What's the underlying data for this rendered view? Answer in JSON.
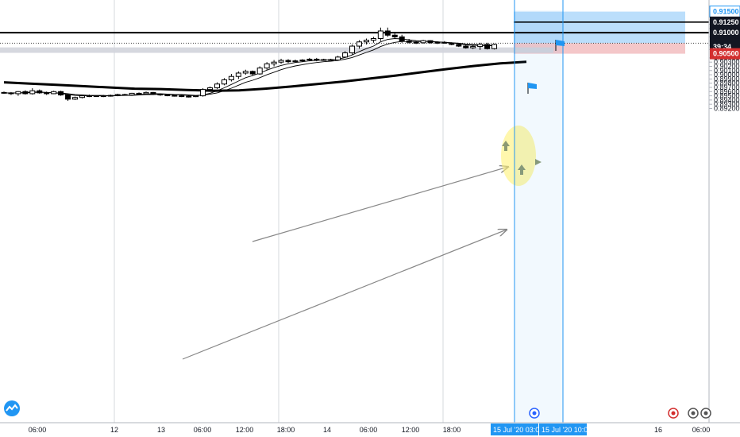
{
  "chart_data": {
    "type": "candlestick",
    "title": "",
    "colors": {
      "up": "#ffffff",
      "down": "#000000",
      "target_zone": "#bbdefb",
      "stop_zone": "#f4c7c9",
      "support_band": "#d1d4dc",
      "highlight": "#fff176",
      "accent": "#2196f3",
      "loss_tag": "#d32f2f",
      "flag": "#2196f3"
    },
    "y_axis": {
      "min": 0.8915,
      "max": 0.9153,
      "ticks": [
        "0.89200",
        "0.89300",
        "0.89400",
        "0.89500",
        "0.89600",
        "0.89700",
        "0.89800",
        "0.89900",
        "0.90000",
        "0.90100",
        "0.90200",
        "0.90300",
        "0.90400",
        "0.90600",
        "0.90700",
        "0.90800",
        "0.90900",
        "0.91100",
        "0.91200",
        "0.91300",
        "0.91400"
      ]
    },
    "x_axis": {
      "ticks": [
        "06:00",
        "12",
        "13",
        "06:00",
        "12:00",
        "18:00",
        "14",
        "06:00",
        "12:00",
        "18:00",
        "03:00",
        "16",
        "06:00"
      ],
      "cursor_labels": [
        "15 Jul '20",
        "15 Jul '20"
      ],
      "cursor_times": [
        "03:00",
        "10:00"
      ]
    },
    "price_tags": [
      {
        "label": "0.91500",
        "value": 0.915,
        "style": "accent"
      },
      {
        "label": "0.91250",
        "value": 0.9125,
        "style": "dark"
      },
      {
        "label": "0.91000",
        "value": 0.91,
        "style": "dark"
      },
      {
        "label": "0.90750",
        "value": 0.9075,
        "style": "dark"
      },
      {
        "label": "0.90723",
        "value": 0.90723,
        "style": "dark"
      },
      {
        "label": "39:34",
        "value": 0.9066,
        "style": "dark"
      },
      {
        "label": "0.90500",
        "value": 0.905,
        "style": "loss"
      }
    ],
    "horizontal_lines": [
      0.9125,
      0.91
    ],
    "dotted_line": 0.9075,
    "support_band": [
      0.9052,
      0.9065
    ],
    "target_zone": [
      0.9075,
      0.915
    ],
    "stop_zone": [
      0.905,
      0.9075
    ],
    "candles": [
      [
        0.8958,
        0.896,
        0.8955,
        0.8957
      ],
      [
        0.8957,
        0.8959,
        0.8952,
        0.8955
      ],
      [
        0.8955,
        0.8961,
        0.895,
        0.896
      ],
      [
        0.896,
        0.8963,
        0.8953,
        0.8955
      ],
      [
        0.8955,
        0.8968,
        0.8953,
        0.8962
      ],
      [
        0.8962,
        0.8965,
        0.8955,
        0.8957
      ],
      [
        0.8957,
        0.896,
        0.8952,
        0.8955
      ],
      [
        0.8955,
        0.8962,
        0.8954,
        0.896
      ],
      [
        0.896,
        0.8962,
        0.895,
        0.8952
      ],
      [
        0.8952,
        0.8955,
        0.8938,
        0.8942
      ],
      [
        0.8942,
        0.8948,
        0.894,
        0.8946
      ],
      [
        0.8946,
        0.8952,
        0.8944,
        0.895
      ],
      [
        0.895,
        0.8953,
        0.8947,
        0.895
      ],
      [
        0.895,
        0.8951,
        0.8948,
        0.8949
      ],
      [
        0.8949,
        0.8952,
        0.8947,
        0.895
      ],
      [
        0.895,
        0.8953,
        0.8948,
        0.8951
      ],
      [
        0.8951,
        0.8955,
        0.8949,
        0.8953
      ],
      [
        0.8953,
        0.8955,
        0.895,
        0.8952
      ],
      [
        0.8952,
        0.8957,
        0.895,
        0.8956
      ],
      [
        0.8956,
        0.8958,
        0.8953,
        0.8955
      ],
      [
        0.8955,
        0.896,
        0.8954,
        0.8958
      ],
      [
        0.8958,
        0.8959,
        0.8952,
        0.8954
      ],
      [
        0.8954,
        0.8955,
        0.895,
        0.8952
      ],
      [
        0.8952,
        0.8954,
        0.8949,
        0.8951
      ],
      [
        0.8951,
        0.8953,
        0.8948,
        0.895
      ],
      [
        0.895,
        0.8952,
        0.8947,
        0.8949
      ],
      [
        0.8949,
        0.8951,
        0.8946,
        0.8948
      ],
      [
        0.8948,
        0.8951,
        0.8947,
        0.895
      ],
      [
        0.895,
        0.8968,
        0.8948,
        0.8965
      ],
      [
        0.8965,
        0.8972,
        0.8962,
        0.8969
      ],
      [
        0.8969,
        0.8982,
        0.8966,
        0.8978
      ],
      [
        0.8978,
        0.8992,
        0.8975,
        0.8988
      ],
      [
        0.8988,
        0.9002,
        0.8984,
        0.8996
      ],
      [
        0.8996,
        0.9008,
        0.899,
        0.9004
      ],
      [
        0.9004,
        0.9012,
        0.9,
        0.9008
      ],
      [
        0.9008,
        0.901,
        0.8998,
        0.9002
      ],
      [
        0.9002,
        0.902,
        0.9,
        0.9016
      ],
      [
        0.9016,
        0.903,
        0.9012,
        0.9026
      ],
      [
        0.9026,
        0.9035,
        0.902,
        0.903
      ],
      [
        0.903,
        0.9038,
        0.9026,
        0.9034
      ],
      [
        0.9034,
        0.9037,
        0.9028,
        0.9031
      ],
      [
        0.9031,
        0.9036,
        0.9029,
        0.9033
      ],
      [
        0.9033,
        0.9037,
        0.903,
        0.9035
      ],
      [
        0.9035,
        0.904,
        0.9032,
        0.9037
      ],
      [
        0.9037,
        0.904,
        0.9032,
        0.9035
      ],
      [
        0.9035,
        0.9038,
        0.9033,
        0.9036
      ],
      [
        0.9036,
        0.9038,
        0.9034,
        0.9035
      ],
      [
        0.9035,
        0.9045,
        0.9033,
        0.9042
      ],
      [
        0.9042,
        0.9056,
        0.904,
        0.9052
      ],
      [
        0.9052,
        0.9072,
        0.9048,
        0.9068
      ],
      [
        0.9068,
        0.9082,
        0.9062,
        0.9078
      ],
      [
        0.9078,
        0.9086,
        0.9072,
        0.9082
      ],
      [
        0.9082,
        0.909,
        0.9076,
        0.9086
      ],
      [
        0.9086,
        0.9112,
        0.908,
        0.9104
      ],
      [
        0.9104,
        0.9112,
        0.909,
        0.9094
      ],
      [
        0.9094,
        0.9102,
        0.9085,
        0.909
      ],
      [
        0.909,
        0.9095,
        0.9076,
        0.908
      ],
      [
        0.908,
        0.9085,
        0.9074,
        0.9077
      ],
      [
        0.9077,
        0.908,
        0.9073,
        0.9076
      ],
      [
        0.9076,
        0.9083,
        0.9074,
        0.9081
      ],
      [
        0.9081,
        0.9082,
        0.9074,
        0.9076
      ],
      [
        0.9076,
        0.9079,
        0.9073,
        0.9077
      ],
      [
        0.9077,
        0.908,
        0.9074,
        0.9075
      ],
      [
        0.9075,
        0.9077,
        0.907,
        0.9072
      ],
      [
        0.9072,
        0.9074,
        0.9066,
        0.9068
      ],
      [
        0.9068,
        0.907,
        0.9062,
        0.9064
      ],
      [
        0.9064,
        0.907,
        0.9061,
        0.9067
      ],
      [
        0.9067,
        0.9076,
        0.9059,
        0.9072
      ],
      [
        0.9072,
        0.9076,
        0.906,
        0.9062
      ],
      [
        0.9062,
        0.9074,
        0.906,
        0.9072
      ]
    ],
    "moving_averages": [
      {
        "values": [
          0.8957,
          0.8957,
          0.8957,
          0.8958,
          0.8959,
          0.8959,
          0.8958,
          0.8957,
          0.8956,
          0.8953,
          0.8951,
          0.895,
          0.895,
          0.895,
          0.895,
          0.895,
          0.8951,
          0.8951,
          0.8952,
          0.8953,
          0.8954,
          0.8955,
          0.8955,
          0.8954,
          0.8953,
          0.8952,
          0.8951,
          0.895,
          0.8952,
          0.8956,
          0.8962,
          0.8969,
          0.8977,
          0.8985,
          0.8993,
          0.8998,
          0.9004,
          0.9011,
          0.9017,
          0.9022,
          0.9026,
          0.9029,
          0.9031,
          0.9033,
          0.9034,
          0.9035,
          0.9035,
          0.9037,
          0.9041,
          0.9047,
          0.9055,
          0.9062,
          0.9068,
          0.9078,
          0.9084,
          0.9086,
          0.9085,
          0.9083,
          0.9081,
          0.908,
          0.9079,
          0.9078,
          0.9077,
          0.9076,
          0.9074,
          0.9071,
          0.907,
          0.907,
          0.9069,
          0.9069
        ]
      },
      {
        "values": [
          0.8957,
          0.8957,
          0.8957,
          0.8957,
          0.8958,
          0.8958,
          0.8958,
          0.8957,
          0.8957,
          0.8955,
          0.8953,
          0.8952,
          0.8951,
          0.8951,
          0.8951,
          0.895,
          0.895,
          0.8951,
          0.8951,
          0.8952,
          0.8953,
          0.8953,
          0.8954,
          0.8954,
          0.8953,
          0.8953,
          0.8952,
          0.8951,
          0.8952,
          0.8954,
          0.8957,
          0.8962,
          0.8968,
          0.8975,
          0.8982,
          0.8987,
          0.8993,
          0.9,
          0.9006,
          0.9012,
          0.9017,
          0.9021,
          0.9024,
          0.9027,
          0.9029,
          0.9031,
          0.9032,
          0.9034,
          0.9037,
          0.9041,
          0.9047,
          0.9053,
          0.9059,
          0.9067,
          0.9073,
          0.9077,
          0.9079,
          0.9079,
          0.9079,
          0.9079,
          0.9079,
          0.9078,
          0.9077,
          0.9076,
          0.9075,
          0.9073,
          0.9072,
          0.9071,
          0.907,
          0.907
        ]
      }
    ],
    "long_ma": [
      0.8982,
      0.8979,
      0.8976,
      0.8973,
      0.897,
      0.8967,
      0.8966,
      0.8964,
      0.8962,
      0.8963,
      0.8967,
      0.8972,
      0.8978,
      0.8984,
      0.8991,
      0.8998,
      0.9006,
      0.9014,
      0.9021,
      0.9027,
      0.9031
    ]
  }
}
